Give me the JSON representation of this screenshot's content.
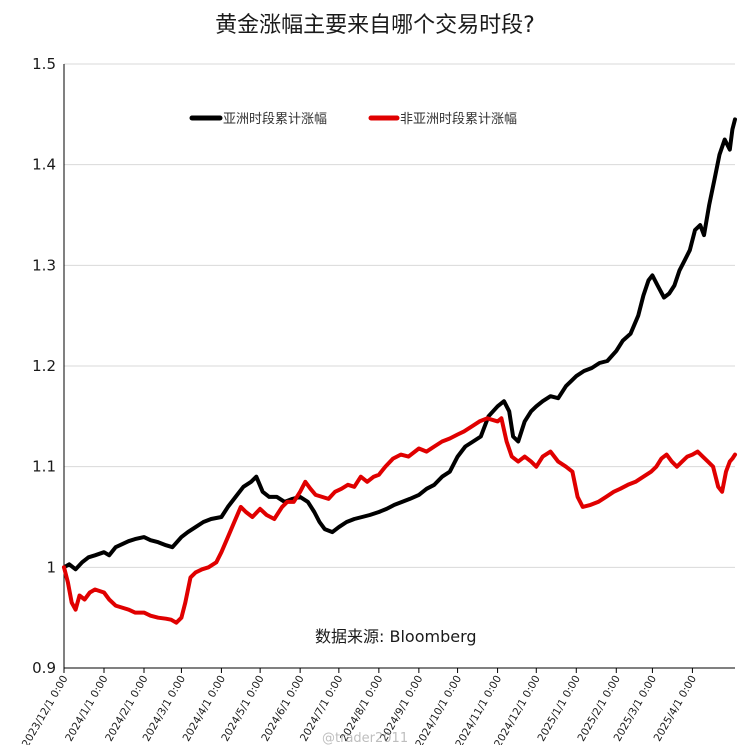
{
  "chart_data": {
    "type": "line",
    "title": "黄金涨幅主要来自哪个交易时段?",
    "source": "数据来源:  Bloomberg",
    "watermark": "@trader2011",
    "ylim": [
      0.9,
      1.5
    ],
    "yticks": [
      "0.9",
      "1",
      "1.1",
      "1.2",
      "1.3",
      "1.4",
      "1.5"
    ],
    "ytick_values": [
      0.9,
      1.0,
      1.1,
      1.2,
      1.3,
      1.4,
      1.5
    ],
    "xlim": [
      "2023-12-01",
      "2025-05-04"
    ],
    "xticks": [
      "2023/12/1 0:00",
      "2024/1/1 0:00",
      "2024/2/1 0:00",
      "2024/3/1 0:00",
      "2024/4/1 0:00",
      "2024/5/1 0:00",
      "2024/6/1 0:00",
      "2024/7/1 0:00",
      "2024/8/1 0:00",
      "2024/9/1 0:00",
      "2024/10/1 0:00",
      "2024/11/1 0:00",
      "2024/12/1 0:00",
      "2025/1/1 0:00",
      "2025/2/1 0:00",
      "2025/3/1 0:00",
      "2025/4/1 0:00"
    ],
    "xtick_dates": [
      "2023-12-01",
      "2024-01-01",
      "2024-02-01",
      "2024-03-01",
      "2024-04-01",
      "2024-05-01",
      "2024-06-01",
      "2024-07-01",
      "2024-08-01",
      "2024-09-01",
      "2024-10-01",
      "2024-11-01",
      "2024-12-01",
      "2025-01-01",
      "2025-02-01",
      "2025-03-01",
      "2025-04-01"
    ],
    "grid": "horizontal",
    "legend_position": "top-left",
    "series": [
      {
        "name": "亚洲时段累计涨幅",
        "color": "#000000",
        "points": [
          [
            "2023-12-01",
            1.0
          ],
          [
            "2023-12-05",
            1.003
          ],
          [
            "2023-12-10",
            0.998
          ],
          [
            "2023-12-15",
            1.005
          ],
          [
            "2023-12-20",
            1.01
          ],
          [
            "2023-12-25",
            1.012
          ],
          [
            "2024-01-01",
            1.015
          ],
          [
            "2024-01-05",
            1.012
          ],
          [
            "2024-01-10",
            1.02
          ],
          [
            "2024-01-15",
            1.023
          ],
          [
            "2024-01-20",
            1.026
          ],
          [
            "2024-01-25",
            1.028
          ],
          [
            "2024-02-01",
            1.03
          ],
          [
            "2024-02-06",
            1.027
          ],
          [
            "2024-02-12",
            1.025
          ],
          [
            "2024-02-18",
            1.022
          ],
          [
            "2024-02-23",
            1.02
          ],
          [
            "2024-03-01",
            1.03
          ],
          [
            "2024-03-06",
            1.035
          ],
          [
            "2024-03-12",
            1.04
          ],
          [
            "2024-03-18",
            1.045
          ],
          [
            "2024-03-24",
            1.048
          ],
          [
            "2024-04-01",
            1.05
          ],
          [
            "2024-04-06",
            1.06
          ],
          [
            "2024-04-12",
            1.07
          ],
          [
            "2024-04-18",
            1.08
          ],
          [
            "2024-04-24",
            1.085
          ],
          [
            "2024-04-28",
            1.09
          ],
          [
            "2024-05-03",
            1.075
          ],
          [
            "2024-05-08",
            1.07
          ],
          [
            "2024-05-14",
            1.07
          ],
          [
            "2024-05-20",
            1.065
          ],
          [
            "2024-05-26",
            1.068
          ],
          [
            "2024-06-01",
            1.07
          ],
          [
            "2024-06-07",
            1.065
          ],
          [
            "2024-06-12",
            1.055
          ],
          [
            "2024-06-16",
            1.045
          ],
          [
            "2024-06-20",
            1.038
          ],
          [
            "2024-06-26",
            1.035
          ],
          [
            "2024-07-01",
            1.04
          ],
          [
            "2024-07-07",
            1.045
          ],
          [
            "2024-07-13",
            1.048
          ],
          [
            "2024-07-19",
            1.05
          ],
          [
            "2024-07-25",
            1.052
          ],
          [
            "2024-08-01",
            1.055
          ],
          [
            "2024-08-07",
            1.058
          ],
          [
            "2024-08-13",
            1.062
          ],
          [
            "2024-08-19",
            1.065
          ],
          [
            "2024-08-25",
            1.068
          ],
          [
            "2024-09-01",
            1.072
          ],
          [
            "2024-09-07",
            1.078
          ],
          [
            "2024-09-13",
            1.082
          ],
          [
            "2024-09-19",
            1.09
          ],
          [
            "2024-09-25",
            1.095
          ],
          [
            "2024-10-01",
            1.11
          ],
          [
            "2024-10-07",
            1.12
          ],
          [
            "2024-10-13",
            1.125
          ],
          [
            "2024-10-19",
            1.13
          ],
          [
            "2024-10-25",
            1.15
          ],
          [
            "2024-11-01",
            1.16
          ],
          [
            "2024-11-06",
            1.165
          ],
          [
            "2024-11-10",
            1.155
          ],
          [
            "2024-11-13",
            1.13
          ],
          [
            "2024-11-17",
            1.125
          ],
          [
            "2024-11-22",
            1.145
          ],
          [
            "2024-11-27",
            1.155
          ],
          [
            "2024-12-01",
            1.16
          ],
          [
            "2024-12-06",
            1.165
          ],
          [
            "2024-12-12",
            1.17
          ],
          [
            "2024-12-18",
            1.168
          ],
          [
            "2024-12-24",
            1.18
          ],
          [
            "2025-01-01",
            1.19
          ],
          [
            "2025-01-07",
            1.195
          ],
          [
            "2025-01-13",
            1.198
          ],
          [
            "2025-01-19",
            1.203
          ],
          [
            "2025-01-25",
            1.205
          ],
          [
            "2025-02-01",
            1.215
          ],
          [
            "2025-02-06",
            1.225
          ],
          [
            "2025-02-12",
            1.232
          ],
          [
            "2025-02-18",
            1.25
          ],
          [
            "2025-02-22",
            1.27
          ],
          [
            "2025-02-26",
            1.285
          ],
          [
            "2025-03-01",
            1.29
          ],
          [
            "2025-03-05",
            1.28
          ],
          [
            "2025-03-10",
            1.268
          ],
          [
            "2025-03-14",
            1.272
          ],
          [
            "2025-03-18",
            1.28
          ],
          [
            "2025-03-22",
            1.295
          ],
          [
            "2025-03-26",
            1.305
          ],
          [
            "2025-03-30",
            1.315
          ],
          [
            "2025-04-03",
            1.335
          ],
          [
            "2025-04-07",
            1.34
          ],
          [
            "2025-04-10",
            1.33
          ],
          [
            "2025-04-14",
            1.36
          ],
          [
            "2025-04-18",
            1.385
          ],
          [
            "2025-04-22",
            1.41
          ],
          [
            "2025-04-26",
            1.425
          ],
          [
            "2025-04-30",
            1.415
          ],
          [
            "2025-05-02",
            1.435
          ],
          [
            "2025-05-04",
            1.445
          ]
        ]
      },
      {
        "name": "非亚洲时段累计涨幅",
        "color": "#e00000",
        "points": [
          [
            "2023-12-01",
            1.0
          ],
          [
            "2023-12-04",
            0.985
          ],
          [
            "2023-12-07",
            0.965
          ],
          [
            "2023-12-10",
            0.958
          ],
          [
            "2023-12-13",
            0.972
          ],
          [
            "2023-12-17",
            0.968
          ],
          [
            "2023-12-21",
            0.975
          ],
          [
            "2023-12-25",
            0.978
          ],
          [
            "2024-01-01",
            0.975
          ],
          [
            "2024-01-05",
            0.968
          ],
          [
            "2024-01-10",
            0.962
          ],
          [
            "2024-01-15",
            0.96
          ],
          [
            "2024-01-20",
            0.958
          ],
          [
            "2024-01-25",
            0.955
          ],
          [
            "2024-02-01",
            0.955
          ],
          [
            "2024-02-06",
            0.952
          ],
          [
            "2024-02-12",
            0.95
          ],
          [
            "2024-02-18",
            0.949
          ],
          [
            "2024-02-22",
            0.948
          ],
          [
            "2024-02-26",
            0.945
          ],
          [
            "2024-03-01",
            0.95
          ],
          [
            "2024-03-04",
            0.965
          ],
          [
            "2024-03-08",
            0.99
          ],
          [
            "2024-03-12",
            0.995
          ],
          [
            "2024-03-17",
            0.998
          ],
          [
            "2024-03-22",
            1.0
          ],
          [
            "2024-03-28",
            1.005
          ],
          [
            "2024-04-01",
            1.015
          ],
          [
            "2024-04-06",
            1.03
          ],
          [
            "2024-04-11",
            1.045
          ],
          [
            "2024-04-16",
            1.06
          ],
          [
            "2024-04-20",
            1.055
          ],
          [
            "2024-04-25",
            1.05
          ],
          [
            "2024-05-01",
            1.058
          ],
          [
            "2024-05-06",
            1.052
          ],
          [
            "2024-05-12",
            1.048
          ],
          [
            "2024-05-18",
            1.06
          ],
          [
            "2024-05-22",
            1.065
          ],
          [
            "2024-05-27",
            1.065
          ],
          [
            "2024-06-01",
            1.075
          ],
          [
            "2024-06-05",
            1.085
          ],
          [
            "2024-06-09",
            1.078
          ],
          [
            "2024-06-13",
            1.072
          ],
          [
            "2024-06-18",
            1.07
          ],
          [
            "2024-06-23",
            1.068
          ],
          [
            "2024-06-28",
            1.075
          ],
          [
            "2024-07-03",
            1.078
          ],
          [
            "2024-07-08",
            1.082
          ],
          [
            "2024-07-13",
            1.08
          ],
          [
            "2024-07-18",
            1.09
          ],
          [
            "2024-07-23",
            1.085
          ],
          [
            "2024-07-28",
            1.09
          ],
          [
            "2024-08-01",
            1.092
          ],
          [
            "2024-08-06",
            1.1
          ],
          [
            "2024-08-12",
            1.108
          ],
          [
            "2024-08-18",
            1.112
          ],
          [
            "2024-08-24",
            1.11
          ],
          [
            "2024-09-01",
            1.118
          ],
          [
            "2024-09-07",
            1.115
          ],
          [
            "2024-09-13",
            1.12
          ],
          [
            "2024-09-19",
            1.125
          ],
          [
            "2024-09-25",
            1.128
          ],
          [
            "2024-10-01",
            1.132
          ],
          [
            "2024-10-06",
            1.135
          ],
          [
            "2024-10-12",
            1.14
          ],
          [
            "2024-10-18",
            1.145
          ],
          [
            "2024-10-24",
            1.148
          ],
          [
            "2024-11-01",
            1.145
          ],
          [
            "2024-11-04",
            1.148
          ],
          [
            "2024-11-08",
            1.125
          ],
          [
            "2024-11-12",
            1.11
          ],
          [
            "2024-11-17",
            1.105
          ],
          [
            "2024-11-22",
            1.11
          ],
          [
            "2024-11-27",
            1.105
          ],
          [
            "2024-12-01",
            1.1
          ],
          [
            "2024-12-06",
            1.11
          ],
          [
            "2024-12-12",
            1.115
          ],
          [
            "2024-12-18",
            1.105
          ],
          [
            "2024-12-24",
            1.1
          ],
          [
            "2024-12-29",
            1.095
          ],
          [
            "2025-01-02",
            1.07
          ],
          [
            "2025-01-06",
            1.06
          ],
          [
            "2025-01-12",
            1.062
          ],
          [
            "2025-01-18",
            1.065
          ],
          [
            "2025-01-24",
            1.07
          ],
          [
            "2025-01-30",
            1.075
          ],
          [
            "2025-02-04",
            1.078
          ],
          [
            "2025-02-10",
            1.082
          ],
          [
            "2025-02-16",
            1.085
          ],
          [
            "2025-02-22",
            1.09
          ],
          [
            "2025-02-28",
            1.095
          ],
          [
            "2025-03-04",
            1.1
          ],
          [
            "2025-03-08",
            1.108
          ],
          [
            "2025-03-12",
            1.112
          ],
          [
            "2025-03-16",
            1.105
          ],
          [
            "2025-03-20",
            1.1
          ],
          [
            "2025-03-24",
            1.105
          ],
          [
            "2025-03-28",
            1.11
          ],
          [
            "2025-04-01",
            1.112
          ],
          [
            "2025-04-05",
            1.115
          ],
          [
            "2025-04-09",
            1.11
          ],
          [
            "2025-04-13",
            1.105
          ],
          [
            "2025-04-17",
            1.1
          ],
          [
            "2025-04-21",
            1.08
          ],
          [
            "2025-04-24",
            1.075
          ],
          [
            "2025-04-27",
            1.095
          ],
          [
            "2025-04-30",
            1.105
          ],
          [
            "2025-05-02",
            1.108
          ],
          [
            "2025-05-04",
            1.112
          ]
        ]
      }
    ]
  }
}
